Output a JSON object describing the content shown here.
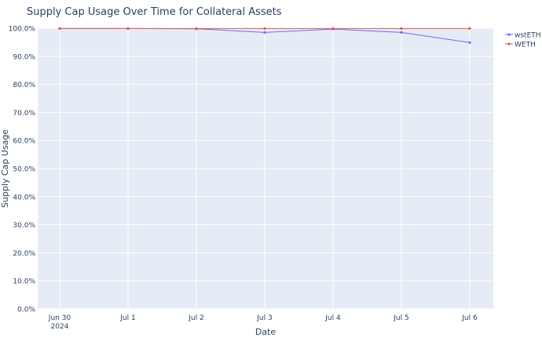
{
  "chart_data": {
    "type": "line",
    "title": "Supply Cap Usage Over Time for Collateral Assets",
    "xlabel": "Date",
    "ylabel": "Supply Cap Usage",
    "x": [
      "2024-06-30",
      "2024-07-01",
      "2024-07-02",
      "2024-07-03",
      "2024-07-04",
      "2024-07-05",
      "2024-07-06"
    ],
    "x_ticks": [
      {
        "label": "Jun 30",
        "sublabel": "2024"
      },
      {
        "label": "Jul 1",
        "sublabel": ""
      },
      {
        "label": "Jul 2",
        "sublabel": ""
      },
      {
        "label": "Jul 3",
        "sublabel": ""
      },
      {
        "label": "Jul 4",
        "sublabel": ""
      },
      {
        "label": "Jul 5",
        "sublabel": ""
      },
      {
        "label": "Jul 6",
        "sublabel": ""
      }
    ],
    "y_ticks": [
      "0.0%",
      "10.0%",
      "20.0%",
      "30.0%",
      "40.0%",
      "50.0%",
      "60.0%",
      "70.0%",
      "80.0%",
      "90.0%",
      "100.0%"
    ],
    "ylim": [
      0,
      100
    ],
    "grid": true,
    "legend_position": "top-right",
    "series": [
      {
        "name": "wstETH",
        "color": "#636efa",
        "values": [
          99.9,
          99.9,
          99.8,
          98.5,
          99.7,
          98.5,
          94.9
        ]
      },
      {
        "name": "WETH",
        "color": "#ef553b",
        "values": [
          99.9,
          99.9,
          99.9,
          99.9,
          99.9,
          99.9,
          99.9
        ]
      }
    ],
    "colors": {
      "plot_bg": "#e5ecf6",
      "grid": "#ffffff",
      "text": "#2a3f5f"
    }
  }
}
